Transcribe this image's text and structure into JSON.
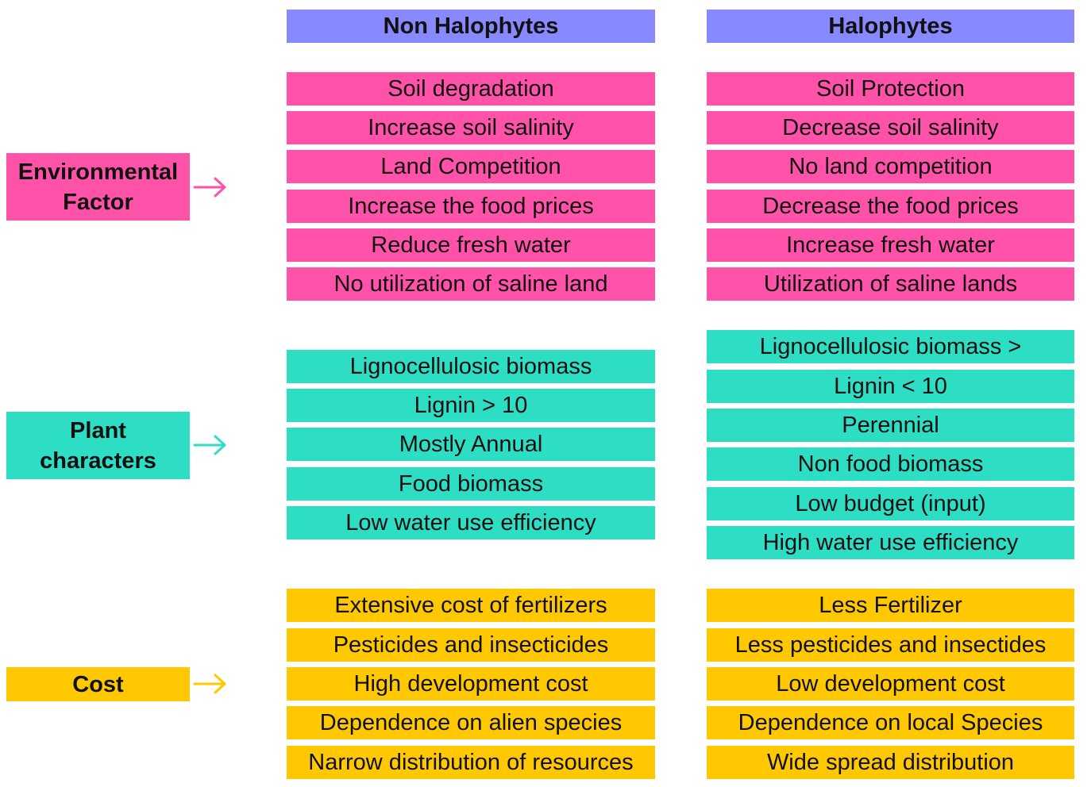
{
  "columns": {
    "left_header": "Non Halophytes",
    "right_header": "Halophytes"
  },
  "categories": {
    "environmental": {
      "line1": "Environmental",
      "line2": "Factor",
      "color": "#ff52a8"
    },
    "plant": {
      "line1": "Plant",
      "line2": "characters",
      "color": "#2edec4"
    },
    "cost": {
      "line1": "Cost",
      "color": "#ffc800"
    }
  },
  "environmental": {
    "non_halophytes": [
      "Soil degradation",
      "Increase soil salinity",
      "Land Competition",
      "Increase the food prices",
      "Reduce fresh water",
      "No utilization of saline land"
    ],
    "halophytes": [
      "Soil Protection",
      "Decrease soil salinity",
      "No land competition",
      "Decrease the food prices",
      "Increase fresh water",
      "Utilization of saline lands"
    ]
  },
  "plant": {
    "non_halophytes": [
      "Lignocellulosic biomass",
      "Lignin > 10",
      "Mostly Annual",
      "Food biomass",
      "Low water use efficiency"
    ],
    "halophytes": [
      "Lignocellulosic biomass >",
      "Lignin < 10",
      "Perennial",
      "Non food biomass",
      "Low budget (input)",
      "High water use efficiency"
    ]
  },
  "cost": {
    "non_halophytes": [
      "Extensive cost of fertilizers",
      "Pesticides and insecticides",
      "High development cost",
      "Dependence on alien species",
      "Narrow distribution of resources"
    ],
    "halophytes": [
      "Less Fertilizer",
      "Less pesticides and insectides",
      "Low development cost",
      "Dependence on local Species",
      "Wide spread distribution"
    ]
  },
  "icons": {
    "arrow": "arrow-right-icon"
  }
}
